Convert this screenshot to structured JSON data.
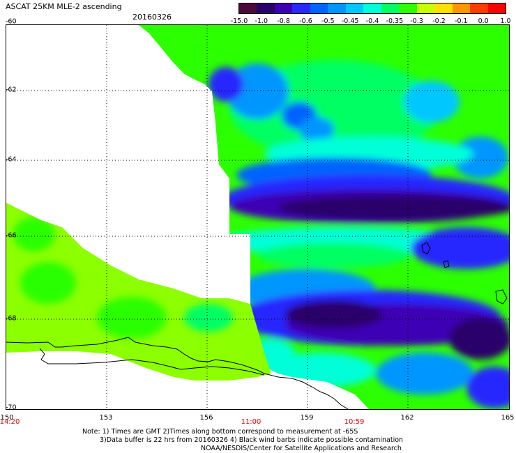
{
  "header": {
    "title": "ASCAT 25KM MLE-2 ascending",
    "date": "20160326"
  },
  "colorbar": {
    "labels": [
      "-15.0",
      "-1.0",
      "-0.8",
      "-0.6",
      "-0.5",
      "-0.45",
      "-0.4",
      "-0.35",
      "-0.3",
      "-0.2",
      "-0.1",
      "0.0",
      "1.0"
    ],
    "colors": [
      "#4a0a3a",
      "#2a006a",
      "#3e00b4",
      "#2828ff",
      "#0064ff",
      "#0096ff",
      "#00c8ff",
      "#00ffd8",
      "#00ff64",
      "#2cff00",
      "#c8ff00",
      "#ffe000",
      "#ff9600",
      "#ff3c00",
      "#ff0000"
    ]
  },
  "map": {
    "lat_labels": [
      "-60",
      "-62",
      "-64",
      "-66",
      "-68",
      "-70"
    ],
    "lon_labels": [
      "150",
      "153",
      "156",
      "159",
      "162",
      "165"
    ],
    "time_labels": [
      {
        "lon": "150",
        "text": "14:20"
      },
      {
        "lon": "157",
        "text": "11:00"
      },
      {
        "lon": "160",
        "text": "10:59"
      }
    ]
  },
  "notes": [
    "Note: 1) Times are GMT 2)Times along bottom correspond to measurement at -65S",
    "3)Data buffer is 22 hrs from 20160326 4) Black wind barbs indicate possible contamination",
    "NOAA/NESDIS/Center for Satellite Applications and Research"
  ]
}
